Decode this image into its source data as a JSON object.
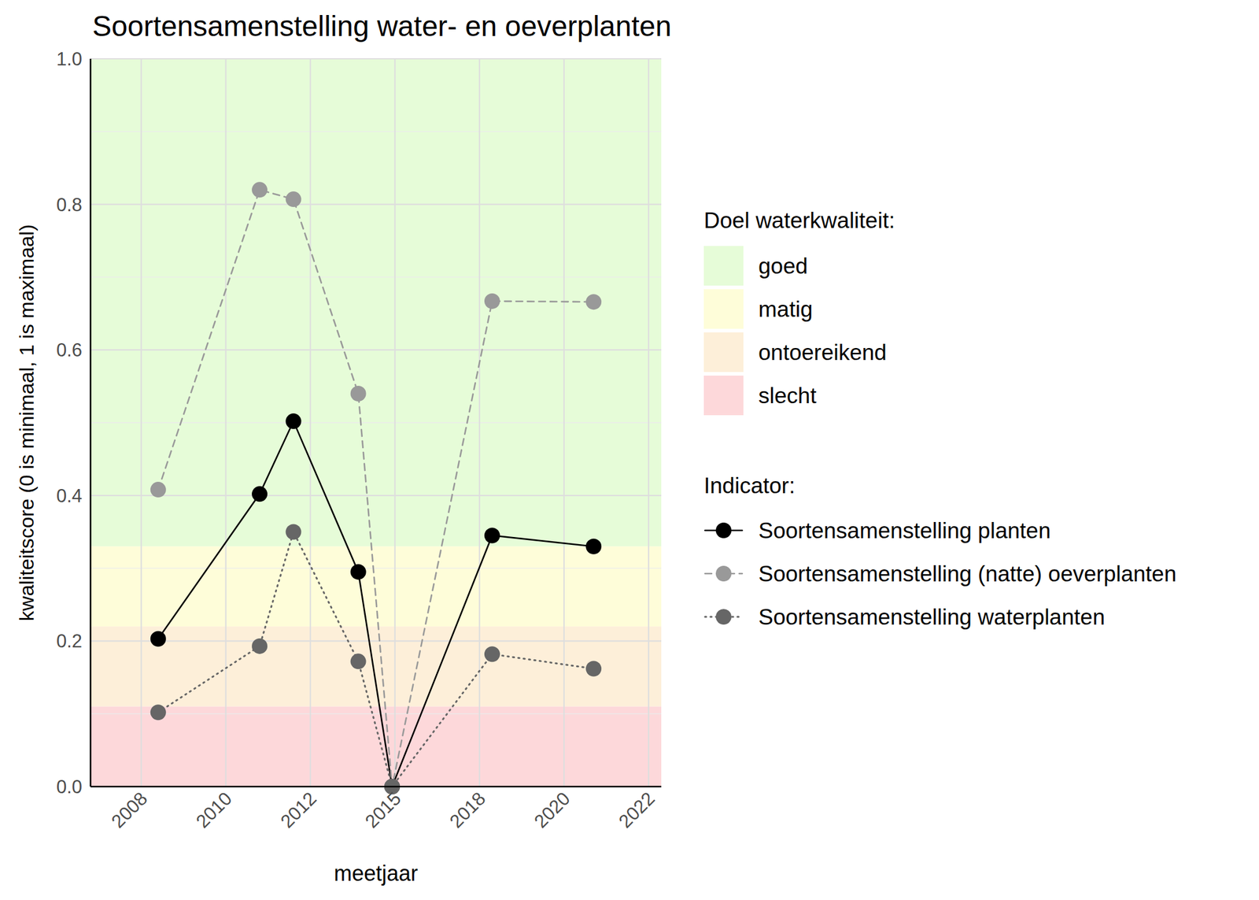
{
  "chart_data": {
    "type": "line",
    "title": "Soortensamenstelling water- en oeverplanten",
    "x_label": "meetjaar",
    "y_label": "kwaliteitscore (0 is minimaal, 1 is maximaal)",
    "x": [
      2008.4,
      2010.8,
      2011.6,
      2013.7,
      2014.9,
      2018.3,
      2020.7
    ],
    "series": [
      {
        "name": "Soortensamenstelling planten",
        "color": "#000000",
        "line_style": "solid",
        "marker": "circle",
        "values": [
          0.203,
          0.402,
          0.502,
          0.295,
          0,
          0.345,
          0.33
        ]
      },
      {
        "name": "Soortensamenstelling (natte) oeverplanten",
        "color": "#999999",
        "line_style": "dashed",
        "marker": "circle",
        "values": [
          0.408,
          0.82,
          0.807,
          0.54,
          0,
          0.667,
          0.666
        ]
      },
      {
        "name": "Soortensamenstelling waterplanten",
        "color": "#666666",
        "line_style": "dotted",
        "marker": "circle",
        "values": [
          0.102,
          0.193,
          0.35,
          0.172,
          0,
          0.182,
          0.162
        ]
      }
    ],
    "xlim": [
      2006.8,
      2022.3
    ],
    "xticks": [
      2008,
      2010,
      2012,
      2015,
      2018,
      2020,
      2022
    ],
    "ylim": [
      0,
      1
    ],
    "yticks": [
      {
        "value": 0,
        "label": "0.0"
      },
      0.2,
      0.4,
      0.6,
      0.8,
      {
        "value": 1,
        "label": "1.0"
      }
    ],
    "grid": true,
    "legend": "right",
    "bands_title": "Doel waterkwaliteit:",
    "legend_title": "Indicator:",
    "bands": [
      {
        "name": "goed",
        "color": "#e6fcd8",
        "from": 0.33,
        "to": 1
      },
      {
        "name": "matig",
        "color": "#fefdd9",
        "from": 0.22,
        "to": 0.33
      },
      {
        "name": "ontoereikend",
        "color": "#fdefd9",
        "from": 0.11,
        "to": 0.22
      },
      {
        "name": "slecht",
        "color": "#fdd8da",
        "from": 0,
        "to": 0.11
      }
    ]
  }
}
